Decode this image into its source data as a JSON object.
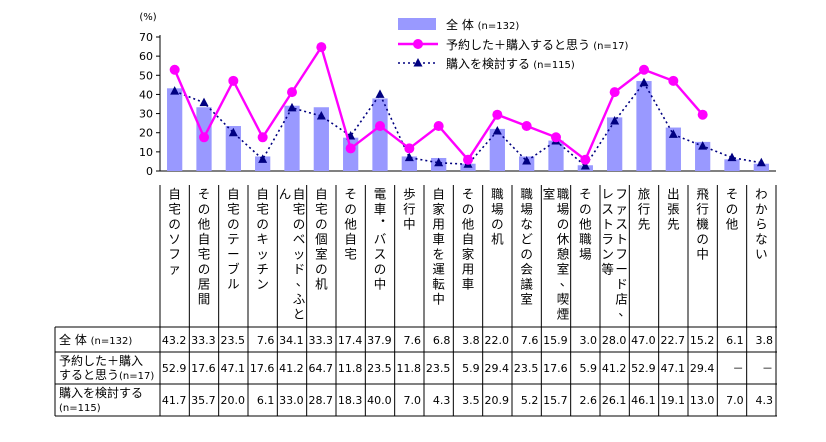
{
  "chart_data": {
    "type": "bar",
    "unit": "(%)",
    "ylim": [
      0,
      70
    ],
    "yticks": [
      0,
      10,
      20,
      30,
      40,
      50,
      60,
      70
    ],
    "legend_position": "top-center",
    "categories": [
      "自宅のソファ",
      "その他自宅の居間",
      "自宅のテーブル",
      "自宅のキッチン",
      "自宅のベッド、ふとん",
      "自宅の個室の机",
      "その他自宅",
      "電車・バスの中",
      "歩行中",
      "自家用車を運転中",
      "その他自家用車",
      "職場の机",
      "職場などの会議室",
      "職場の休憩室、喫煙室",
      "その他職場",
      "ファストフード店、レストラン等",
      "旅行先",
      "出張先",
      "飛行機の中",
      "その他",
      "わからない"
    ],
    "series": [
      {
        "name": "全 体",
        "n": "(n=132)",
        "type": "bar",
        "color": "#9999ff",
        "values": [
          43.2,
          33.3,
          23.5,
          7.6,
          34.1,
          33.3,
          17.4,
          37.9,
          7.6,
          6.8,
          3.8,
          22.0,
          7.6,
          15.9,
          3.0,
          28.0,
          47.0,
          22.7,
          15.2,
          6.1,
          3.8
        ],
        "labels": [
          "43.2",
          "33.3",
          "23.5",
          "7.6",
          "34.1",
          "33.3",
          "17.4",
          "37.9",
          "7.6",
          "6.8",
          "3.8",
          "22.0",
          "7.6",
          "15.9",
          "3.0",
          "28.0",
          "47.0",
          "22.7",
          "15.2",
          "6.1",
          "3.8"
        ]
      },
      {
        "name": "予約した＋購入すると思う",
        "n": "(n=17)",
        "type": "line",
        "color": "#ff00ff",
        "values": [
          52.9,
          17.6,
          47.1,
          17.6,
          41.2,
          64.7,
          11.8,
          23.5,
          11.8,
          23.5,
          5.9,
          29.4,
          23.5,
          17.6,
          5.9,
          41.2,
          52.9,
          47.1,
          29.4,
          null,
          null
        ],
        "labels": [
          "52.9",
          "17.6",
          "47.1",
          "17.6",
          "41.2",
          "64.7",
          "11.8",
          "23.5",
          "11.8",
          "23.5",
          "5.9",
          "29.4",
          "23.5",
          "17.6",
          "5.9",
          "41.2",
          "52.9",
          "47.1",
          "29.4",
          "－",
          "－"
        ]
      },
      {
        "name": "購入を検討する",
        "n": "(n=115)",
        "type": "line-dotted",
        "color": "#000080",
        "values": [
          41.7,
          35.7,
          20.0,
          6.1,
          33.0,
          28.7,
          18.3,
          40.0,
          7.0,
          4.3,
          3.5,
          20.9,
          5.2,
          15.7,
          2.6,
          26.1,
          46.1,
          19.1,
          13.0,
          7.0,
          4.3
        ],
        "labels": [
          "41.7",
          "35.7",
          "20.0",
          "6.1",
          "33.0",
          "28.7",
          "18.3",
          "40.0",
          "7.0",
          "4.3",
          "3.5",
          "20.9",
          "5.2",
          "15.7",
          "2.6",
          "26.1",
          "46.1",
          "19.1",
          "13.0",
          "7.0",
          "4.3"
        ]
      }
    ],
    "table_row_headers": [
      [
        "全 体",
        "(n=132)"
      ],
      [
        "予約した＋購入",
        "すると思う",
        "(n=17)"
      ],
      [
        "購入を検討する",
        "(n=115)"
      ]
    ]
  }
}
